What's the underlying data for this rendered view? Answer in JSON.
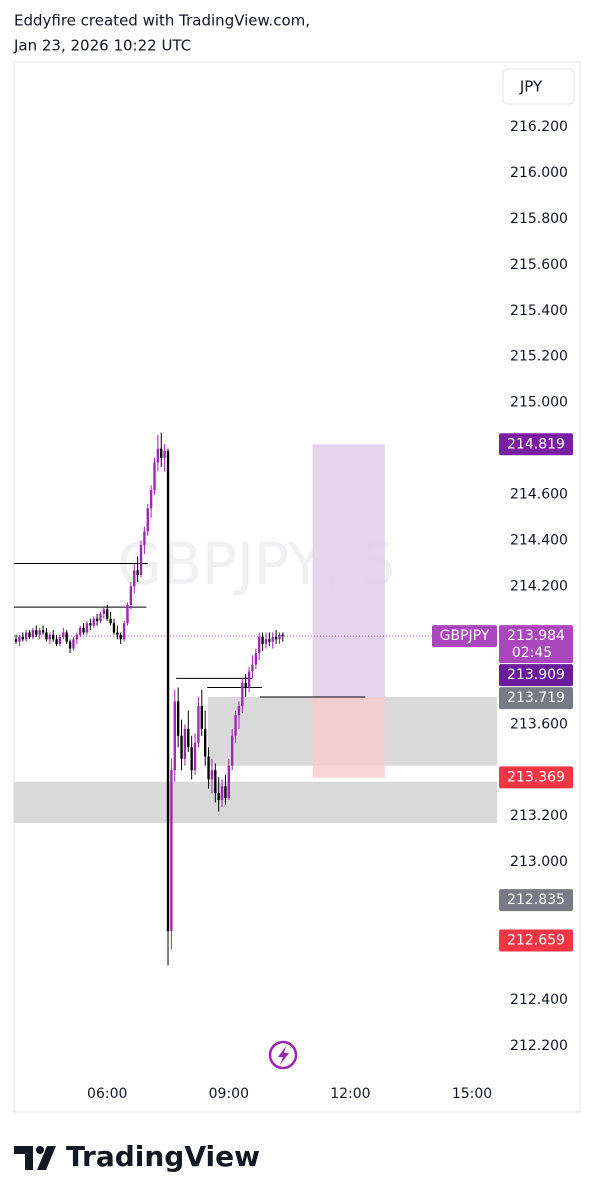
{
  "header": {
    "line1": "Eddyfire created with TradingView.com,",
    "line2": "Jan 23, 2026 10:22 UTC"
  },
  "footer": {
    "logo": "TradingView"
  },
  "chart_data": {
    "type": "candlestick",
    "watermark": "GBPJPY, 5",
    "currency": "JPY",
    "up_color": "#9c27b0",
    "down_color": "#000000",
    "xlim": [
      222,
      937
    ],
    "xticks": [
      {
        "value": 360,
        "label": "06:00"
      },
      {
        "value": 540,
        "label": "09:00"
      },
      {
        "value": 720,
        "label": "12:00"
      },
      {
        "value": 900,
        "label": "15:00"
      }
    ],
    "ylim": [
      212.03,
      216.483
    ],
    "yticks": [
      {
        "value": 216.2,
        "label": "216.200"
      },
      {
        "value": 216.0,
        "label": "216.000"
      },
      {
        "value": 215.8,
        "label": "215.800"
      },
      {
        "value": 215.6,
        "label": "215.600"
      },
      {
        "value": 215.4,
        "label": "215.400"
      },
      {
        "value": 215.2,
        "label": "215.200"
      },
      {
        "value": 215.0,
        "label": "215.000"
      },
      {
        "value": 214.6,
        "label": "214.600"
      },
      {
        "value": 214.4,
        "label": "214.400"
      },
      {
        "value": 214.2,
        "label": "214.200"
      },
      {
        "value": 213.6,
        "label": "213.600"
      },
      {
        "value": 213.2,
        "label": "213.200"
      },
      {
        "value": 213.0,
        "label": "213.000"
      },
      {
        "value": 212.4,
        "label": "212.400"
      },
      {
        "value": 212.2,
        "label": "212.200"
      }
    ],
    "x": [
      225,
      230,
      235,
      240,
      245,
      250,
      255,
      260,
      265,
      270,
      275,
      280,
      285,
      290,
      295,
      300,
      305,
      310,
      315,
      320,
      325,
      330,
      335,
      340,
      345,
      350,
      355,
      360,
      365,
      370,
      375,
      380,
      385,
      390,
      395,
      400,
      405,
      410,
      415,
      420,
      425,
      430,
      435,
      440,
      445,
      450,
      455,
      460,
      465,
      470,
      475,
      480,
      485,
      490,
      495,
      500,
      505,
      510,
      515,
      520,
      525,
      530,
      535,
      540,
      545,
      550,
      555,
      560,
      565,
      570,
      575,
      580,
      585,
      590,
      595,
      600,
      605,
      610,
      615,
      620
    ],
    "open": [
      213.97,
      213.96,
      213.98,
      213.97,
      214.0,
      213.98,
      214.01,
      213.99,
      214.01,
      214.0,
      213.97,
      213.99,
      213.97,
      213.95,
      213.98,
      214.0,
      213.96,
      213.93,
      213.97,
      213.99,
      214.02,
      214.0,
      214.04,
      214.03,
      214.06,
      214.05,
      214.08,
      214.1,
      214.06,
      214.04,
      214.0,
      213.99,
      213.97,
      214.04,
      214.12,
      214.2,
      214.27,
      214.25,
      214.38,
      214.44,
      214.54,
      214.62,
      214.74,
      214.8,
      214.76,
      214.79,
      212.7,
      213.4,
      213.7,
      213.55,
      213.45,
      213.58,
      213.5,
      213.4,
      213.52,
      213.68,
      213.58,
      213.46,
      213.36,
      213.4,
      213.3,
      213.27,
      213.33,
      213.28,
      213.42,
      213.55,
      213.64,
      213.68,
      213.78,
      213.76,
      213.83,
      213.86,
      213.91,
      213.98,
      213.95,
      213.97,
      213.96,
      213.98,
      213.97,
      213.99
    ],
    "high": [
      213.99,
      213.99,
      214.0,
      214.01,
      214.01,
      214.02,
      214.03,
      214.02,
      214.03,
      214.02,
      214.0,
      214.01,
      213.99,
      213.99,
      214.02,
      214.01,
      213.97,
      213.98,
      214.0,
      214.03,
      214.04,
      214.05,
      214.06,
      214.07,
      214.08,
      214.09,
      214.11,
      214.12,
      214.09,
      214.06,
      214.03,
      214.0,
      214.05,
      214.13,
      214.22,
      214.3,
      214.33,
      214.4,
      214.46,
      214.56,
      214.64,
      214.76,
      214.86,
      214.87,
      214.82,
      214.8,
      213.45,
      213.75,
      213.76,
      213.62,
      213.6,
      213.66,
      213.55,
      213.56,
      213.72,
      213.75,
      213.66,
      213.5,
      213.45,
      213.43,
      213.37,
      213.36,
      213.38,
      213.45,
      213.58,
      213.66,
      213.7,
      213.8,
      213.82,
      213.85,
      213.9,
      213.93,
      214.0,
      214.0,
      214.0,
      214.0,
      214.0,
      214.01,
      214.0,
      214.0
    ],
    "low": [
      213.95,
      213.94,
      213.96,
      213.96,
      213.97,
      213.97,
      213.98,
      213.97,
      213.99,
      213.96,
      213.95,
      213.96,
      213.94,
      213.94,
      213.97,
      213.95,
      213.91,
      213.92,
      213.95,
      213.98,
      213.99,
      213.99,
      214.01,
      214.02,
      214.03,
      214.04,
      214.06,
      214.05,
      214.03,
      213.99,
      213.97,
      213.95,
      213.96,
      214.03,
      214.1,
      214.17,
      214.22,
      214.24,
      214.34,
      214.42,
      214.5,
      214.6,
      214.7,
      214.72,
      214.7,
      212.55,
      212.62,
      213.35,
      213.5,
      213.4,
      213.42,
      213.48,
      213.36,
      213.38,
      213.5,
      213.55,
      213.42,
      213.32,
      213.3,
      213.26,
      213.22,
      213.24,
      213.25,
      213.27,
      213.4,
      213.52,
      213.58,
      213.65,
      213.72,
      213.74,
      213.8,
      213.84,
      213.88,
      213.92,
      213.93,
      213.94,
      213.93,
      213.95,
      213.95,
      213.96
    ],
    "close": [
      213.96,
      213.98,
      213.97,
      214.0,
      213.98,
      214.01,
      213.99,
      214.01,
      214.0,
      213.97,
      213.99,
      213.97,
      213.95,
      213.98,
      214.0,
      213.96,
      213.93,
      213.97,
      213.99,
      214.02,
      214.0,
      214.04,
      214.03,
      214.06,
      214.05,
      214.08,
      214.1,
      214.06,
      214.04,
      214.0,
      213.99,
      213.97,
      214.04,
      214.12,
      214.2,
      214.27,
      214.25,
      214.38,
      214.44,
      214.54,
      214.62,
      214.74,
      214.8,
      214.76,
      214.79,
      212.7,
      213.4,
      213.7,
      213.55,
      213.45,
      213.58,
      213.5,
      213.4,
      213.52,
      213.68,
      213.58,
      213.46,
      213.36,
      213.4,
      213.3,
      213.27,
      213.33,
      213.28,
      213.42,
      213.55,
      213.64,
      213.68,
      213.78,
      213.76,
      213.83,
      213.86,
      213.91,
      213.98,
      213.95,
      213.97,
      213.96,
      213.98,
      213.97,
      213.99,
      213.984
    ],
    "last_price": 213.984,
    "last_price_color": "#ab47bc",
    "hlines": [
      {
        "price": 214.3,
        "from": 222,
        "to": 420
      },
      {
        "price": 214.11,
        "from": 222,
        "to": 418
      },
      {
        "price": 213.8,
        "from": 462,
        "to": 574
      },
      {
        "price": 213.76,
        "from": 508,
        "to": 589
      },
      {
        "price": 213.719,
        "from": 586,
        "to": 742
      }
    ],
    "zones": [
      {
        "top": 213.719,
        "bottom": 213.42,
        "from": 509,
        "to": 937,
        "color": "#d9d9d9"
      },
      {
        "top": 213.35,
        "bottom": 213.17,
        "from": 222,
        "to": 937,
        "color": "#d9d9d9"
      }
    ],
    "position": {
      "target": 214.819,
      "entry": 213.719,
      "stop": 213.369,
      "from": 664,
      "to": 771,
      "target_color": "#e3cfeb",
      "stop_color": "#f7cccc"
    },
    "price_labels": [
      {
        "value": 214.819,
        "color": "#7b1fa2"
      },
      {
        "value": 213.984,
        "color": "#ab47bc",
        "name": "GBPJPY",
        "countdown": "02:45"
      },
      {
        "value": 213.909,
        "color": "#6a1b9a"
      },
      {
        "value": 213.719,
        "color": "#787b86"
      },
      {
        "value": 213.369,
        "color": "#f23645"
      },
      {
        "value": 212.835,
        "color": "#787b86"
      },
      {
        "value": 212.659,
        "color": "#f23645"
      }
    ]
  }
}
